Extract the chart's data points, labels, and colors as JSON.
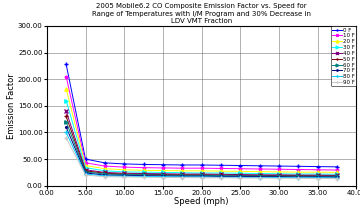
{
  "title": "2005 Mobile6.2 CO Composite Emission Factor vs. Speed for\nRange of Temperatures with I/M Program and 30% Decrease in\nLDV VMT Fraction",
  "xlabel": "Speed (mph)",
  "ylabel": "Emission Factor",
  "xlim": [
    0.0,
    40.0
  ],
  "ylim": [
    0.0,
    300.0
  ],
  "xticks": [
    0.0,
    5.0,
    10.0,
    15.0,
    20.0,
    25.0,
    30.0,
    35.0,
    40.0
  ],
  "yticks": [
    0.0,
    50.0,
    100.0,
    150.0,
    200.0,
    250.0,
    300.0
  ],
  "temperatures": [
    "0",
    "10",
    "20",
    "30",
    "40",
    "50",
    "60",
    "70",
    "80",
    "90"
  ],
  "speeds": [
    2.5,
    5.0,
    7.5,
    10.0,
    12.5,
    15.0,
    17.5,
    20.0,
    22.5,
    25.0,
    27.5,
    30.0,
    32.5,
    35.0,
    37.5
  ],
  "emission_data": {
    "0": [
      228.0,
      50.0,
      43.0,
      41.0,
      40.0,
      39.5,
      39.0,
      39.0,
      38.5,
      38.0,
      37.5,
      37.0,
      36.5,
      36.0,
      35.5
    ],
    "10": [
      205.0,
      43.0,
      37.0,
      35.0,
      34.0,
      33.5,
      33.0,
      33.0,
      32.5,
      32.0,
      31.5,
      31.0,
      30.5,
      30.0,
      29.5
    ],
    "20": [
      182.0,
      38.0,
      32.0,
      30.0,
      29.0,
      28.5,
      28.0,
      28.0,
      27.5,
      27.0,
      26.5,
      26.0,
      25.5,
      25.5,
      25.0
    ],
    "30": [
      160.0,
      34.0,
      28.0,
      26.0,
      25.5,
      25.0,
      24.5,
      24.0,
      24.0,
      23.5,
      23.0,
      22.5,
      22.0,
      22.0,
      21.5
    ],
    "40": [
      140.0,
      30.0,
      25.0,
      23.5,
      23.0,
      22.5,
      22.0,
      22.0,
      21.5,
      21.0,
      20.5,
      20.5,
      20.0,
      20.0,
      19.5
    ],
    "50": [
      130.0,
      28.0,
      23.5,
      22.0,
      21.5,
      21.0,
      20.5,
      20.5,
      20.0,
      19.5,
      19.5,
      19.0,
      19.0,
      18.5,
      18.5
    ],
    "60": [
      120.0,
      26.0,
      22.0,
      21.0,
      20.5,
      20.0,
      19.5,
      19.5,
      19.0,
      18.5,
      18.5,
      18.0,
      18.0,
      17.5,
      17.5
    ],
    "70": [
      110.0,
      24.0,
      20.0,
      19.5,
      19.0,
      18.5,
      18.0,
      18.0,
      17.5,
      17.5,
      17.0,
      17.0,
      16.5,
      16.5,
      16.0
    ],
    "80": [
      100.0,
      22.0,
      18.5,
      18.0,
      17.5,
      17.0,
      16.5,
      16.5,
      16.0,
      16.0,
      15.5,
      15.5,
      15.0,
      15.0,
      14.5
    ],
    "90": [
      90.0,
      20.0,
      17.0,
      16.5,
      16.0,
      15.5,
      15.5,
      15.0,
      15.0,
      14.5,
      14.5,
      14.0,
      14.0,
      13.5,
      13.5
    ]
  },
  "color_map": {
    "0": "#0000FF",
    "10": "#FF00FF",
    "20": "#FFFF00",
    "30": "#00FFFF",
    "40": "#800080",
    "50": "#800000",
    "60": "#008080",
    "70": "#000080",
    "80": "#00CCFF",
    "90": "#C8C8C8"
  },
  "marker_map": {
    "0": "+",
    "10": "*",
    "20": "^",
    "30": ">",
    "40": "x",
    "50": "+",
    "60": ">",
    "70": ".",
    "80": "+",
    "90": "+"
  },
  "label_map": {
    "0": "0 F",
    "10": "10 F",
    "20": "20 F",
    "30": "30 F",
    "40": "40 F",
    "50": "50 F",
    "60": "60 F",
    "70": "70 F",
    "80": "80 F",
    "90": "90 F"
  },
  "title_fontsize": 5,
  "axis_label_fontsize": 6,
  "tick_fontsize": 5,
  "legend_fontsize": 4,
  "figsize": [
    3.6,
    2.16
  ],
  "dpi": 100
}
